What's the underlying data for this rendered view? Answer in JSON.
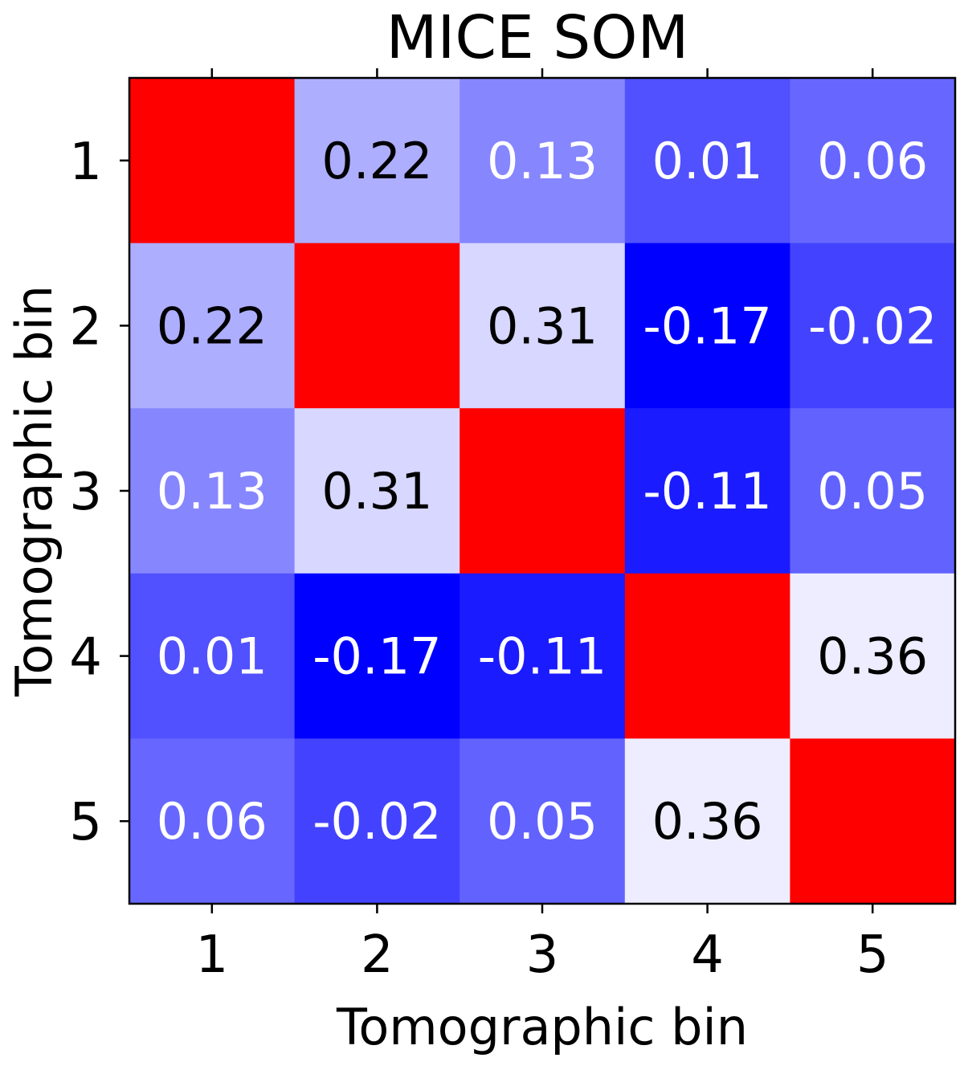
{
  "chart_data": {
    "type": "heatmap",
    "title": "MICE SOM",
    "xlabel": "Tomographic bin",
    "ylabel": "Tomographic bin",
    "x_categories": [
      "1",
      "2",
      "3",
      "4",
      "5"
    ],
    "y_categories": [
      "1",
      "2",
      "3",
      "4",
      "5"
    ],
    "values": [
      [
        null,
        0.22,
        0.13,
        0.01,
        0.06
      ],
      [
        0.22,
        null,
        0.31,
        -0.17,
        -0.02
      ],
      [
        0.13,
        0.31,
        null,
        -0.11,
        0.05
      ],
      [
        0.01,
        -0.17,
        -0.11,
        null,
        0.36
      ],
      [
        0.06,
        -0.02,
        0.05,
        0.36,
        null
      ]
    ],
    "cell_labels": [
      [
        "",
        "0.22",
        "0.13",
        "0.01",
        "0.06"
      ],
      [
        "0.22",
        "",
        "0.31",
        "-0.17",
        "-0.02"
      ],
      [
        "0.13",
        "0.31",
        "",
        "-0.11",
        "0.05"
      ],
      [
        "0.01",
        "-0.17",
        "-0.11",
        "",
        "0.36"
      ],
      [
        "0.06",
        "-0.02",
        "0.05",
        "0.36",
        ""
      ]
    ],
    "diagonal_color": "#ff0000",
    "colors": {
      "negative_end": "#0000ff",
      "positive_end": "#ffffff",
      "diagonal": "#ff0000",
      "dark_text": "#000000",
      "light_text": "#ffffff"
    },
    "color_range": [
      -0.17,
      0.4
    ],
    "grid": false,
    "legend": "none"
  }
}
